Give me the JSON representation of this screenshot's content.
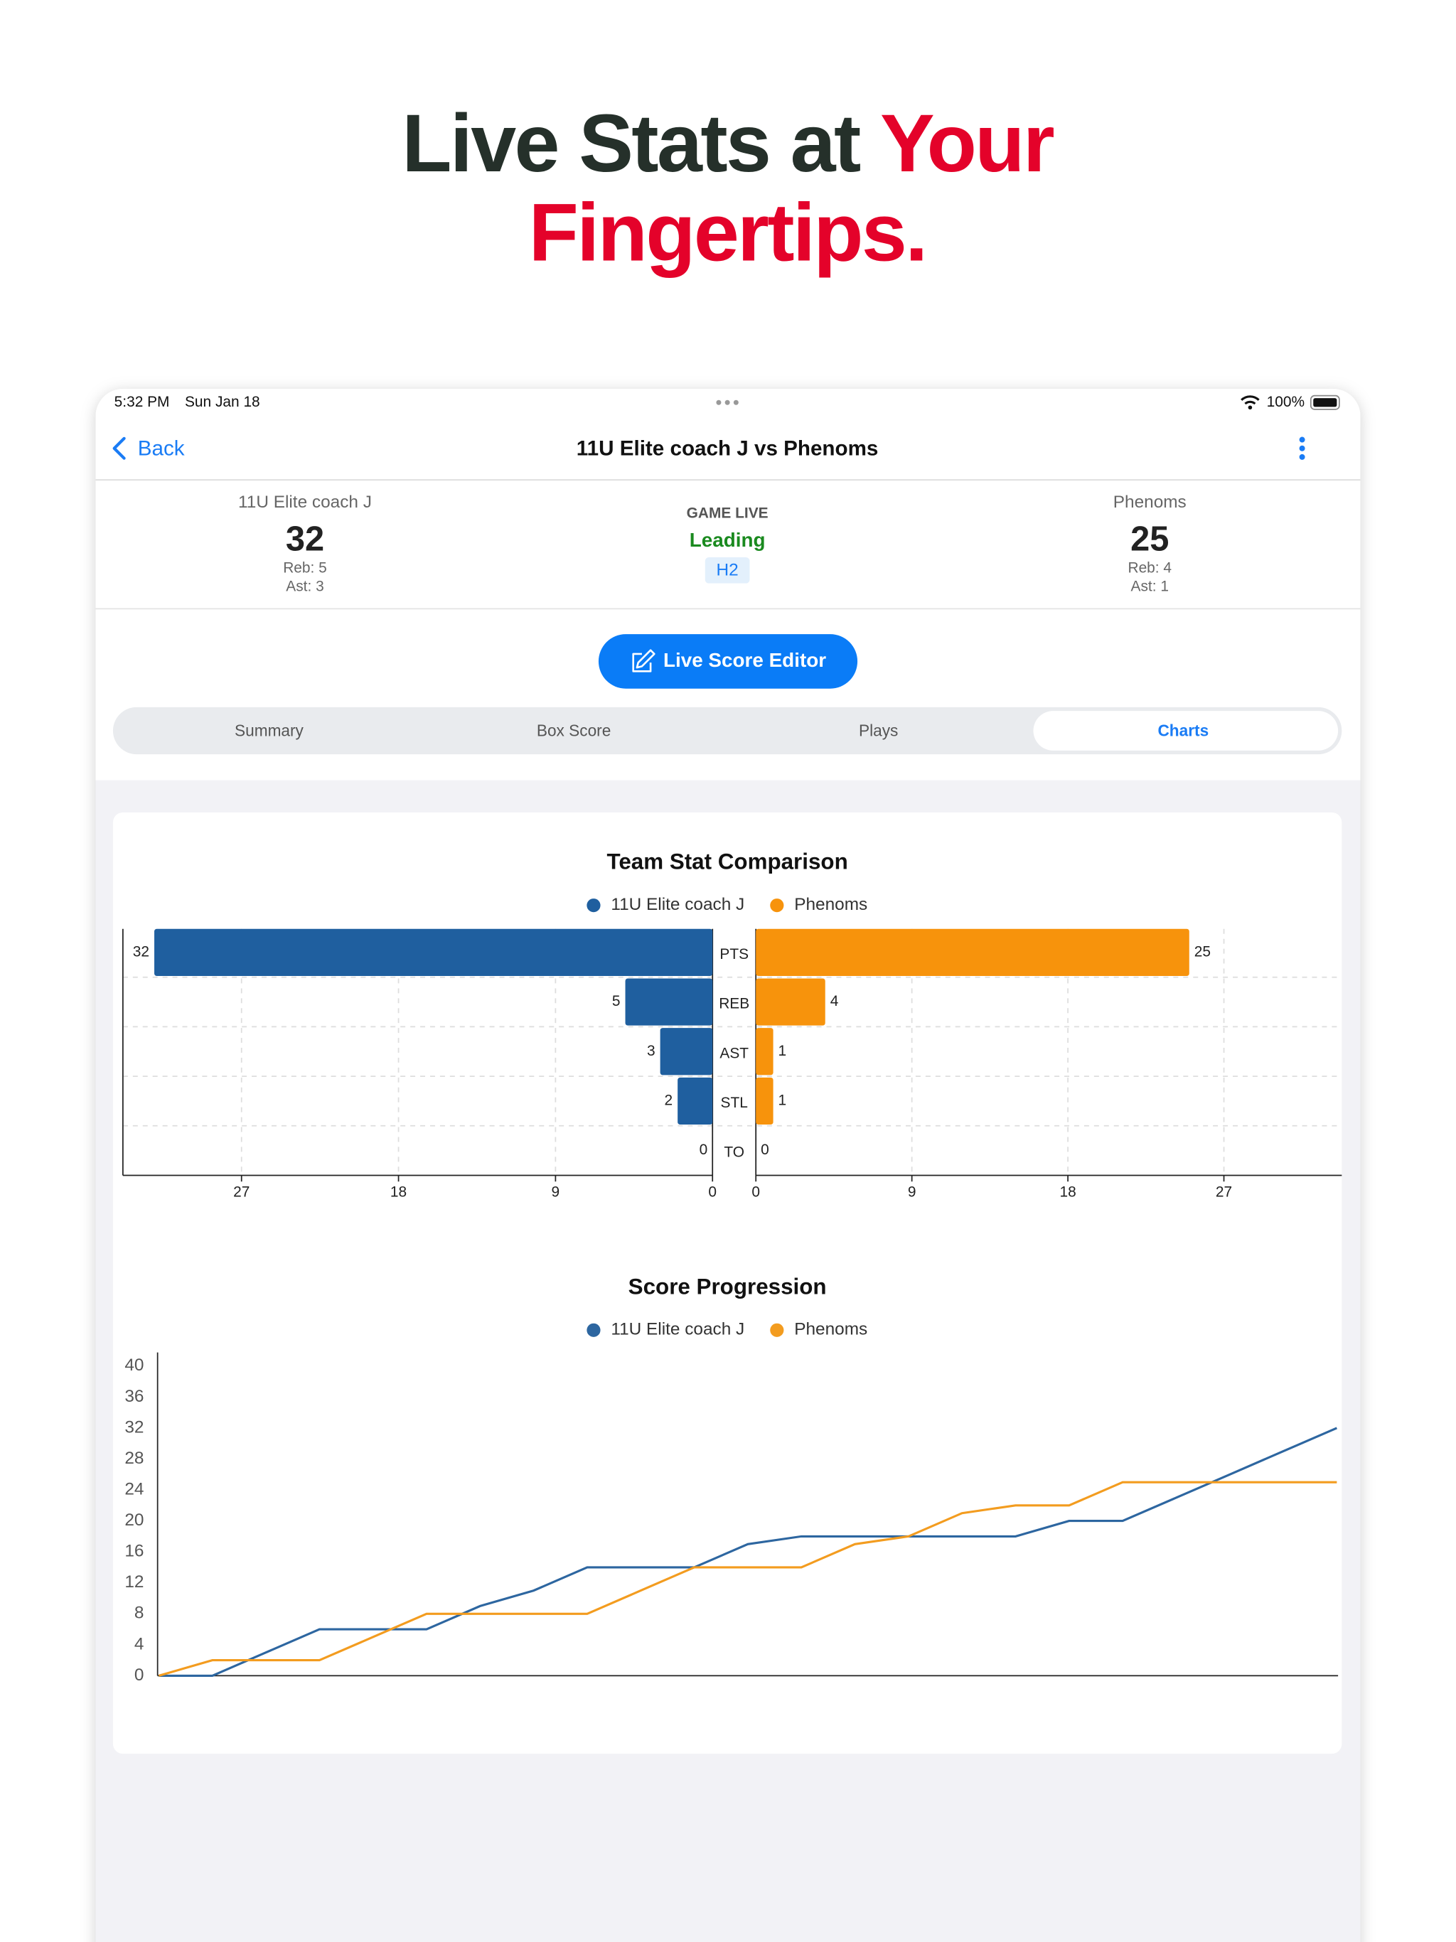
{
  "headline": {
    "text": "Live Stats at",
    "highlight": "Your",
    "line2": "Fingertips."
  },
  "status_bar": {
    "time": "5:32 PM",
    "date": "Sun Jan 18",
    "battery": "100%"
  },
  "nav": {
    "back": "Back",
    "title": "11U Elite coach J vs Phenoms"
  },
  "scoreboard": {
    "home": {
      "name": "11U Elite coach J",
      "score": 32,
      "reb": "Reb: 5",
      "ast": "Ast: 3"
    },
    "status": "GAME LIVE",
    "state": "Leading",
    "period": "H2",
    "away": {
      "name": "Phenoms",
      "score": 25,
      "reb": "Reb: 4",
      "ast": "Ast: 1"
    }
  },
  "button": "Live Score Editor",
  "tabs": [
    "Summary",
    "Box Score",
    "Plays",
    "Charts"
  ],
  "chart_data": [
    {
      "type": "butterfly",
      "title": "Team Stat Comparison",
      "categories": [
        "PTS",
        "REB",
        "AST",
        "STL",
        "TO"
      ],
      "series": [
        {
          "name": "11U Elite coach J",
          "color": "#1f5f9f",
          "values": [
            32,
            5,
            3,
            2,
            0
          ]
        },
        {
          "name": "Phenoms",
          "color": "#f7930c",
          "values": [
            25,
            4,
            1,
            1,
            0
          ]
        }
      ],
      "xlim": [
        0,
        33.8
      ],
      "xticks": [
        0,
        9,
        18,
        27
      ],
      "grid": true
    },
    {
      "type": "line",
      "title": "Score Progression",
      "series": [
        {
          "name": "11U Elite coach J",
          "color": "#2d66a0",
          "values": [
            0,
            0,
            3,
            6,
            6,
            6,
            9,
            11,
            14,
            14,
            14,
            17,
            18,
            18,
            18,
            18,
            18,
            20,
            20,
            23,
            26,
            29,
            32
          ]
        },
        {
          "name": "Phenoms",
          "color": "#f39c1f",
          "values": [
            0,
            2,
            2,
            2,
            5,
            8,
            8,
            8,
            8,
            11,
            14,
            14,
            14,
            17,
            18,
            21,
            22,
            22,
            25,
            25,
            25,
            25,
            25
          ]
        }
      ],
      "ylim": [
        0,
        40
      ],
      "yticks": [
        0,
        4,
        8,
        12,
        16,
        20,
        24,
        28,
        32,
        36,
        40
      ],
      "grid": false
    }
  ]
}
